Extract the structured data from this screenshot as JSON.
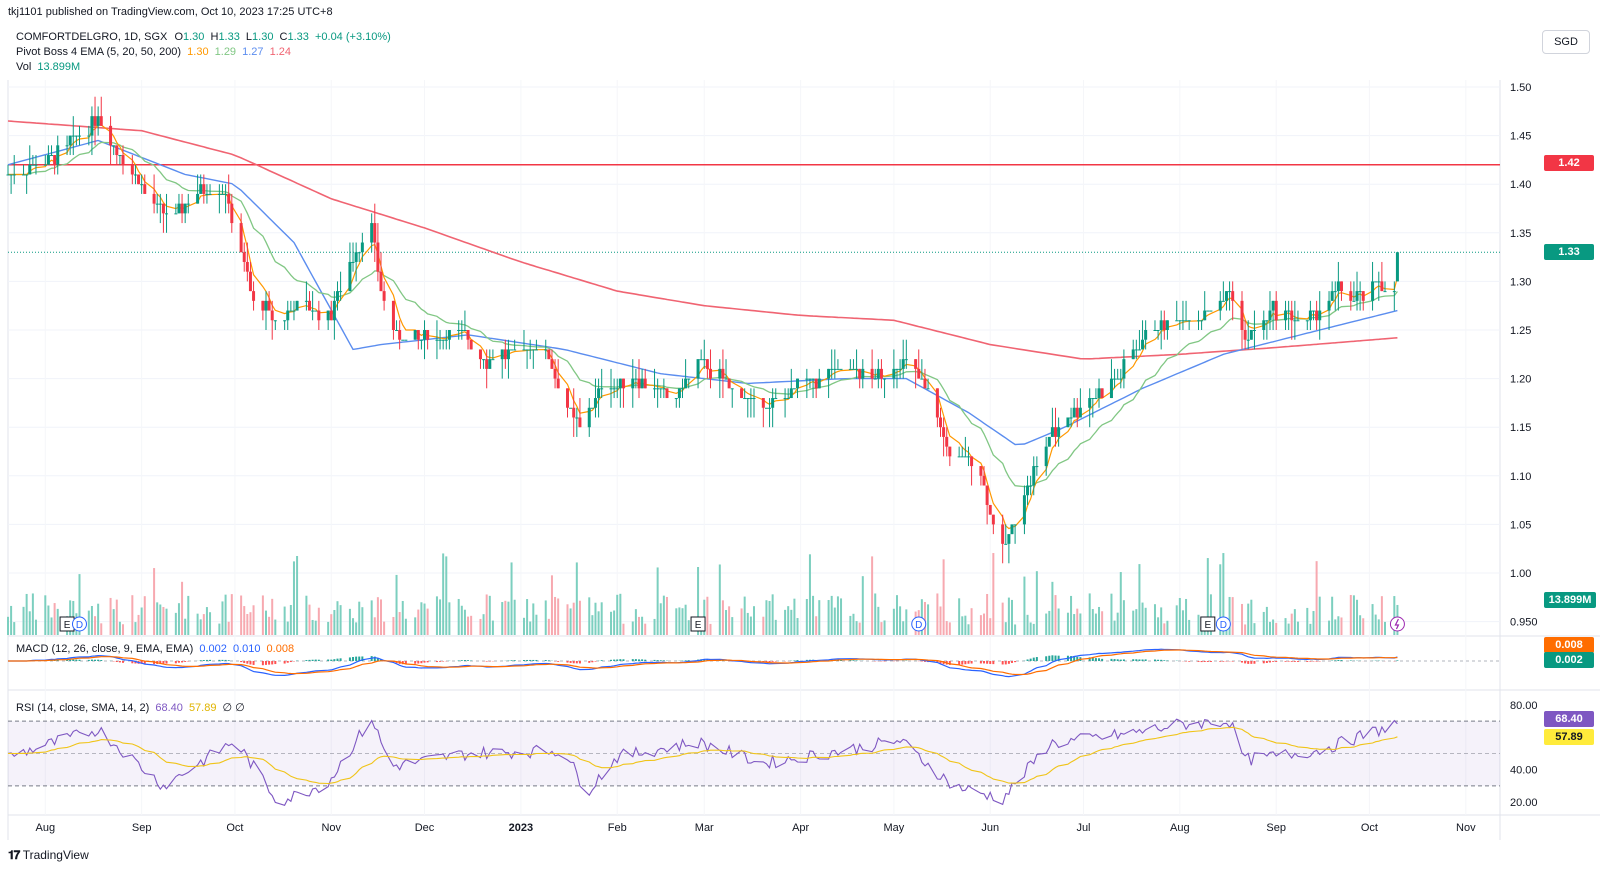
{
  "header": {
    "publisher": "tkj1101 published on TradingView.com, Oct 10, 2023 17:25 UTC+8",
    "symbol": "COMFORTDELGRO, 1D, SGX",
    "open_label": "O",
    "open": "1.30",
    "high_label": "H",
    "high": "1.33",
    "low_label": "L",
    "low": "1.30",
    "close_label": "C",
    "close": "1.33",
    "change": "+0.04 (+3.10%)",
    "ema_label": "Pivot Boss 4 EMA (5, 20, 50, 200)",
    "ema_values": [
      "1.30",
      "1.29",
      "1.27",
      "1.24"
    ],
    "vol_label": "Vol",
    "vol_value": "13.899M",
    "currency": "SGD"
  },
  "macd": {
    "label": "MACD (12, 26, close, 9, EMA, EMA)",
    "values": [
      "0.002",
      "0.010",
      "0.008"
    ],
    "box_top": "0.008",
    "box_bottom": "0.002"
  },
  "rsi": {
    "label": "RSI (14, close, SMA, 14, 2)",
    "values": [
      "68.40",
      "57.89"
    ],
    "symbols": "∅ ∅",
    "box_rsi": "68.40",
    "box_sma": "57.89",
    "ticks": [
      "80.00",
      "40.00",
      "20.00"
    ]
  },
  "price_boxes": {
    "resistance": "1.42",
    "last": "1.33",
    "volume": "13.899M"
  },
  "price_ticks": [
    "1.50",
    "1.45",
    "1.40",
    "1.35",
    "1.30",
    "1.25",
    "1.20",
    "1.15",
    "1.10",
    "1.05",
    "1.00",
    "0.950"
  ],
  "time_ticks": [
    "Aug",
    "Sep",
    "Oct",
    "Nov",
    "Dec",
    "2023",
    "Feb",
    "Mar",
    "Apr",
    "May",
    "Jun",
    "Jul",
    "Aug",
    "Sep",
    "Oct",
    "Nov"
  ],
  "event_markers": [
    "E",
    "D",
    "E",
    "D",
    "E",
    "D"
  ],
  "footer_logo": "TradingView",
  "colors": {
    "up": "#089981",
    "down": "#f23645",
    "ema5": "#ff9800",
    "ema20": "#81c784",
    "ema50": "#5b8def",
    "ema200": "#f06472",
    "resistance": "#f23645",
    "rsi": "#7e57c2",
    "rsi_sma": "#fdd835"
  },
  "chart_data": {
    "type": "candlestick",
    "title": "COMFORTDELGRO, 1D, SGX",
    "ylim": [
      0.93,
      1.52
    ],
    "x_range": [
      "Jul 2022",
      "Nov 2023"
    ],
    "horizontal_line": 1.42,
    "last_close": 1.33,
    "close_path": [
      [
        "2022-07-20",
        1.41
      ],
      [
        "2022-08-05",
        1.43
      ],
      [
        "2022-08-18",
        1.47
      ],
      [
        "2022-08-25",
        1.43
      ],
      [
        "2022-09-05",
        1.38
      ],
      [
        "2022-09-12",
        1.37
      ],
      [
        "2022-09-22",
        1.4
      ],
      [
        "2022-09-28",
        1.39
      ],
      [
        "2022-10-07",
        1.28
      ],
      [
        "2022-10-15",
        1.26
      ],
      [
        "2022-10-24",
        1.28
      ],
      [
        "2022-10-31",
        1.26
      ],
      [
        "2022-11-07",
        1.32
      ],
      [
        "2022-11-14",
        1.36
      ],
      [
        "2022-11-17",
        1.29
      ],
      [
        "2022-11-22",
        1.24
      ],
      [
        "2022-12-01",
        1.24
      ],
      [
        "2022-12-12",
        1.25
      ],
      [
        "2022-12-21",
        1.22
      ],
      [
        "2022-12-31",
        1.23
      ],
      [
        "2023-01-09",
        1.23
      ],
      [
        "2023-01-16",
        1.17
      ],
      [
        "2023-01-20",
        1.15
      ],
      [
        "2023-01-27",
        1.19
      ],
      [
        "2023-02-06",
        1.2
      ],
      [
        "2023-02-20",
        1.18
      ],
      [
        "2023-02-27",
        1.22
      ],
      [
        "2023-03-10",
        1.19
      ],
      [
        "2023-03-21",
        1.17
      ],
      [
        "2023-03-31",
        1.19
      ],
      [
        "2023-04-13",
        1.21
      ],
      [
        "2023-04-28",
        1.2
      ],
      [
        "2023-05-03",
        1.22
      ],
      [
        "2023-05-12",
        1.19
      ],
      [
        "2023-05-19",
        1.12
      ],
      [
        "2023-05-28",
        1.12
      ],
      [
        "2023-06-01",
        1.06
      ],
      [
        "2023-06-05",
        1.02
      ],
      [
        "2023-06-12",
        1.08
      ],
      [
        "2023-06-20",
        1.14
      ],
      [
        "2023-06-30",
        1.17
      ],
      [
        "2023-07-12",
        1.2
      ],
      [
        "2023-07-21",
        1.25
      ],
      [
        "2023-07-31",
        1.26
      ],
      [
        "2023-08-10",
        1.27
      ],
      [
        "2023-08-17",
        1.29
      ],
      [
        "2023-08-22",
        1.24
      ],
      [
        "2023-08-31",
        1.27
      ],
      [
        "2023-09-11",
        1.26
      ],
      [
        "2023-09-21",
        1.29
      ],
      [
        "2023-09-29",
        1.28
      ],
      [
        "2023-10-04",
        1.3
      ],
      [
        "2023-10-09",
        1.29
      ],
      [
        "2023-10-10",
        1.33
      ]
    ],
    "ema200_path": [
      [
        "2022-07-20",
        1.465
      ],
      [
        "2022-09-01",
        1.455
      ],
      [
        "2022-10-01",
        1.43
      ],
      [
        "2022-11-01",
        1.385
      ],
      [
        "2022-12-01",
        1.355
      ],
      [
        "2023-01-01",
        1.32
      ],
      [
        "2023-02-01",
        1.29
      ],
      [
        "2023-03-01",
        1.275
      ],
      [
        "2023-04-01",
        1.265
      ],
      [
        "2023-05-01",
        1.26
      ],
      [
        "2023-06-01",
        1.235
      ],
      [
        "2023-07-01",
        1.22
      ],
      [
        "2023-08-01",
        1.225
      ],
      [
        "2023-09-01",
        1.232
      ],
      [
        "2023-10-10",
        1.242
      ]
    ],
    "ema50_path": [
      [
        "2022-07-20",
        1.42
      ],
      [
        "2022-08-18",
        1.445
      ],
      [
        "2022-09-15",
        1.41
      ],
      [
        "2022-10-01",
        1.4
      ],
      [
        "2022-10-20",
        1.34
      ],
      [
        "2022-11-08",
        1.23
      ],
      [
        "2022-11-17",
        1.235
      ],
      [
        "2022-12-15",
        1.245
      ],
      [
        "2023-01-15",
        1.23
      ],
      [
        "2023-02-15",
        1.205
      ],
      [
        "2023-03-15",
        1.195
      ],
      [
        "2023-04-15",
        1.2
      ],
      [
        "2023-05-05",
        1.2
      ],
      [
        "2023-05-25",
        1.165
      ],
      [
        "2023-06-10",
        1.13
      ],
      [
        "2023-06-25",
        1.15
      ],
      [
        "2023-07-20",
        1.19
      ],
      [
        "2023-08-15",
        1.225
      ],
      [
        "2023-09-15",
        1.25
      ],
      [
        "2023-10-10",
        1.27
      ]
    ],
    "rsi_path": [
      [
        "2022-07-20",
        48
      ],
      [
        "2022-08-18",
        65
      ],
      [
        "2022-09-08",
        30
      ],
      [
        "2022-10-01",
        58
      ],
      [
        "2022-10-15",
        20
      ],
      [
        "2022-10-31",
        32
      ],
      [
        "2022-11-14",
        72
      ],
      [
        "2022-11-20",
        42
      ],
      [
        "2022-12-15",
        50
      ],
      [
        "2023-01-15",
        52
      ],
      [
        "2023-01-22",
        26
      ],
      [
        "2023-02-01",
        48
      ],
      [
        "2023-02-27",
        57
      ],
      [
        "2023-03-20",
        44
      ],
      [
        "2023-04-15",
        52
      ],
      [
        "2023-05-03",
        58
      ],
      [
        "2023-05-20",
        30
      ],
      [
        "2023-06-05",
        22
      ],
      [
        "2023-06-20",
        56
      ],
      [
        "2023-07-15",
        62
      ],
      [
        "2023-08-01",
        68
      ],
      [
        "2023-08-17",
        70
      ],
      [
        "2023-08-22",
        46
      ],
      [
        "2023-09-15",
        52
      ],
      [
        "2023-10-10",
        68.4
      ]
    ],
    "volume_last": "13.899M"
  }
}
